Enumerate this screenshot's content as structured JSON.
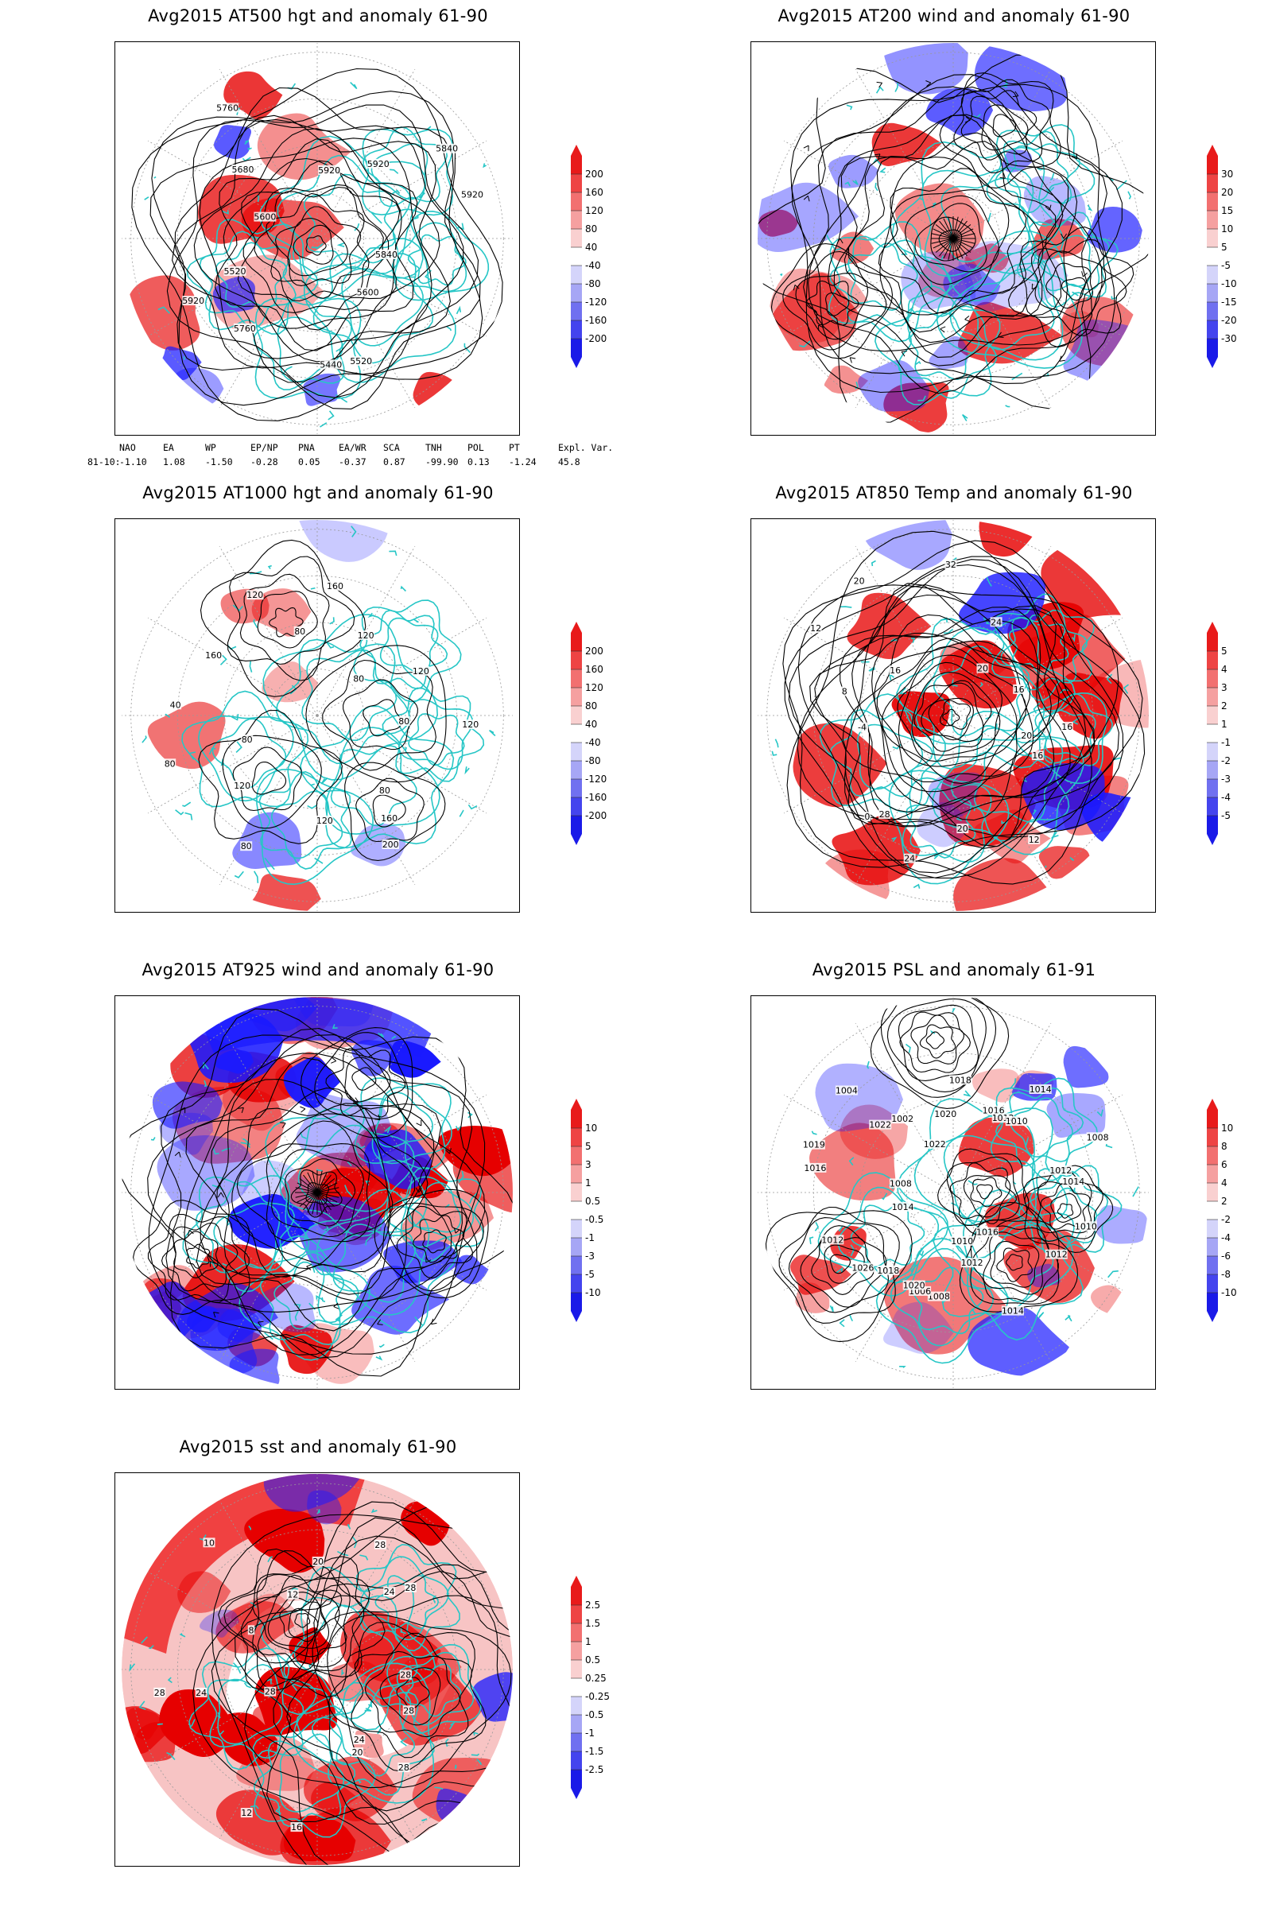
{
  "colors": {
    "positive": "#e60000",
    "negative": "#1a1aff",
    "coast": "#26c6c6",
    "contour": "#000000"
  },
  "panels": [
    {
      "id": "at500",
      "title": "Avg2015 AT500 hgt and anomaly 61-90",
      "contour_labels": [
        "5840",
        "5600",
        "5520",
        "5440",
        "5760",
        "5920",
        "5520",
        "5600",
        "5680",
        "5760",
        "5920",
        "5920",
        "5840",
        "5920"
      ],
      "colorbar": [
        "200",
        "160",
        "120",
        "80",
        "40",
        "-40",
        "-80",
        "-120",
        "-160",
        "-200"
      ]
    },
    {
      "id": "at200",
      "title": "Avg2015 AT200 wind and anomaly 61-90",
      "contour_labels": [],
      "colorbar": [
        "30",
        "20",
        "15",
        "10",
        "5",
        "-5",
        "-10",
        "-15",
        "-20",
        "-30"
      ]
    },
    {
      "id": "at1000",
      "title": "Avg2015 AT1000 hgt and anomaly 61-90",
      "contour_labels": [
        "120",
        "80",
        "160",
        "200",
        "120",
        "80",
        "120",
        "80",
        "80",
        "40",
        "160",
        "120",
        "80",
        "160",
        "120",
        "80",
        "120",
        "80"
      ],
      "colorbar": [
        "200",
        "160",
        "120",
        "80",
        "40",
        "-40",
        "-80",
        "-120",
        "-160",
        "-200"
      ]
    },
    {
      "id": "at850",
      "title": "Avg2015 AT850 Temp and anomaly 61-90",
      "contour_labels": [
        "20",
        "16",
        "12",
        "20",
        "24",
        "28",
        "0",
        "-4",
        "8",
        "12",
        "16",
        "20",
        "32",
        "24",
        "20",
        "16",
        "16"
      ],
      "colorbar": [
        "5",
        "4",
        "3",
        "2",
        "1",
        "-1",
        "-2",
        "-3",
        "-4",
        "-5"
      ]
    },
    {
      "id": "at925",
      "title": "Avg2015 AT925 wind and anomaly 61-90",
      "contour_labels": [],
      "colorbar": [
        "10",
        "5",
        "3",
        "1",
        "0.5",
        "-0.5",
        "-1",
        "-3",
        "-5",
        "-10"
      ]
    },
    {
      "id": "psl",
      "title": "Avg2015 PSL and anomaly 61-91",
      "contour_labels": [
        "1010",
        "1012",
        "1016",
        "1014",
        "1012",
        "1010",
        "1008",
        "1006",
        "1020",
        "1026",
        "1018",
        "1014",
        "1012",
        "1016",
        "1019",
        "1008",
        "1022",
        "1004",
        "1002",
        "1020",
        "1022",
        "1018",
        "1016",
        "1014",
        "1012",
        "1010",
        "1008",
        "1014",
        "1012"
      ],
      "colorbar": [
        "10",
        "8",
        "6",
        "4",
        "2",
        "-2",
        "-4",
        "-6",
        "-8",
        "-10"
      ]
    },
    {
      "id": "sst",
      "title": "Avg2015 sst and anomaly 61-90",
      "contour_labels": [
        "28",
        "28",
        "24",
        "20",
        "16",
        "12",
        "28",
        "24",
        "28",
        "8",
        "10",
        "12",
        "20",
        "28",
        "24",
        "28",
        "28"
      ],
      "colorbar": [
        "2.5",
        "1.5",
        "1",
        "0.5",
        "0.25",
        "-0.25",
        "-0.5",
        "-1",
        "-1.5",
        "-2.5"
      ]
    }
  ],
  "teleconnection": {
    "headers": [
      "NAO",
      "EA",
      "WP",
      "EP/NP",
      "PNA",
      "EA/WR",
      "SCA",
      "TNH",
      "POL",
      "PT",
      "Expl. Var."
    ],
    "row_label": "81-10:",
    "values": [
      "-1.10",
      "1.08",
      "-1.50",
      "-0.28",
      "0.05",
      "-0.37",
      "0.87",
      "-99.90",
      "0.13",
      "-1.24",
      "45.8"
    ]
  }
}
